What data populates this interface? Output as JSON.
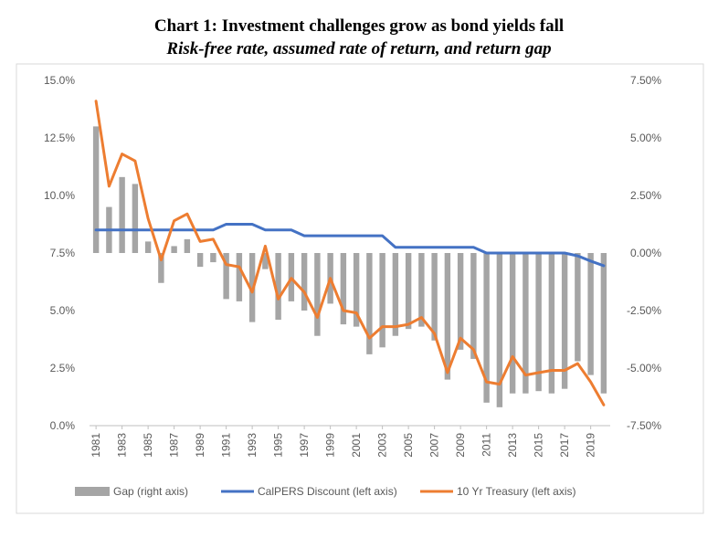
{
  "chart_data": {
    "type": "bar+line",
    "title": "Chart 1: Investment challenges grow as bond yields fall",
    "subtitle": "Risk-free rate, assumed rate of return, and return gap",
    "years": [
      1981,
      1982,
      1983,
      1984,
      1985,
      1986,
      1987,
      1988,
      1989,
      1990,
      1991,
      1992,
      1993,
      1994,
      1995,
      1996,
      1997,
      1998,
      1999,
      2000,
      2001,
      2002,
      2003,
      2004,
      2005,
      2006,
      2007,
      2008,
      2009,
      2010,
      2011,
      2012,
      2013,
      2014,
      2015,
      2016,
      2017,
      2018,
      2019,
      2020
    ],
    "x_tick_labels": [
      "1981",
      "1983",
      "1985",
      "1987",
      "1989",
      "1991",
      "1993",
      "1995",
      "1997",
      "1999",
      "2001",
      "2003",
      "2005",
      "2007",
      "2009",
      "2011",
      "2013",
      "2015",
      "2017",
      "2019"
    ],
    "left_axis": {
      "min": 0,
      "max": 15,
      "ticks": [
        "0.0%",
        "2.5%",
        "5.0%",
        "7.5%",
        "10.0%",
        "12.5%",
        "15.0%"
      ]
    },
    "right_axis": {
      "min": -7.5,
      "max": 7.5,
      "ticks": [
        "-7.50%",
        "-5.00%",
        "-2.50%",
        "0.00%",
        "2.50%",
        "5.00%",
        "7.50%"
      ]
    },
    "series": [
      {
        "name": "Gap (right axis)",
        "type": "bar",
        "axis": "right",
        "color": "#a5a5a5",
        "values": [
          5.5,
          2.0,
          3.3,
          3.0,
          0.5,
          -1.3,
          0.3,
          0.6,
          -0.6,
          -0.4,
          -2.0,
          -2.1,
          -3.0,
          -0.7,
          -2.9,
          -2.1,
          -2.5,
          -3.6,
          -2.2,
          -3.1,
          -3.2,
          -4.4,
          -4.1,
          -3.6,
          -3.3,
          -3.2,
          -3.8,
          -5.5,
          -4.2,
          -4.6,
          -6.5,
          -6.7,
          -6.1,
          -6.1,
          -6.0,
          -6.1,
          -5.9,
          -4.7,
          -5.3,
          -6.1
        ]
      },
      {
        "name": "CalPERS Discount (left axis)",
        "type": "line",
        "axis": "left",
        "color": "#4472c4",
        "values": [
          8.5,
          8.5,
          8.5,
          8.5,
          8.5,
          8.5,
          8.5,
          8.5,
          8.5,
          8.5,
          8.75,
          8.75,
          8.75,
          8.5,
          8.5,
          8.5,
          8.25,
          8.25,
          8.25,
          8.25,
          8.25,
          8.25,
          8.25,
          7.75,
          7.75,
          7.75,
          7.75,
          7.75,
          7.75,
          7.75,
          7.5,
          7.5,
          7.5,
          7.5,
          7.5,
          7.5,
          7.5,
          7.375,
          7.15,
          6.95
        ]
      },
      {
        "name": "10 Yr Treasury (left axis)",
        "type": "line",
        "axis": "left",
        "color": "#ed7d31",
        "values": [
          14.1,
          10.4,
          11.8,
          11.5,
          9.0,
          7.2,
          8.9,
          9.2,
          8.0,
          8.1,
          7.0,
          6.9,
          5.8,
          7.8,
          5.5,
          6.4,
          5.8,
          4.7,
          6.4,
          5.0,
          4.9,
          3.8,
          4.3,
          4.3,
          4.4,
          4.7,
          4.0,
          2.3,
          3.8,
          3.3,
          1.9,
          1.8,
          3.0,
          2.2,
          2.3,
          2.4,
          2.4,
          2.7,
          1.9,
          0.9
        ]
      }
    ],
    "legend": [
      {
        "label": "Gap (right axis)",
        "kind": "bar",
        "color": "#a5a5a5"
      },
      {
        "label": "CalPERS Discount (left axis)",
        "kind": "line",
        "color": "#4472c4"
      },
      {
        "label": "10 Yr Treasury (left axis)",
        "kind": "line",
        "color": "#ed7d31"
      }
    ],
    "legend_position": "bottom",
    "grid": false
  }
}
